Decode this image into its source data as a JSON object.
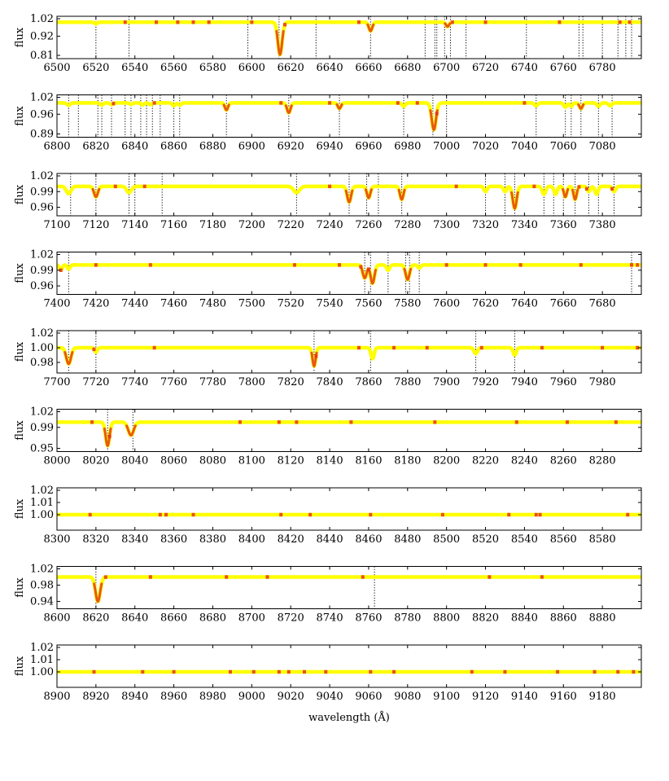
{
  "figure": {
    "xlabel": "wavelength (Å)",
    "ylabel": "flux",
    "colors": {
      "continuum": "#ffff00",
      "line_core": "#e85a10",
      "hot_spot": "#e8301a",
      "marker": "#000000"
    }
  },
  "chart_data": [
    {
      "type": "line",
      "xlim": [
        6500,
        6800
      ],
      "xticks": [
        "6500",
        "6520",
        "6540",
        "6560",
        "6580",
        "6600",
        "6620",
        "6640",
        "6660",
        "6680",
        "6700",
        "6720",
        "6740",
        "6760",
        "6780"
      ],
      "ylim": [
        0.81,
        1.02
      ],
      "yticks": [
        "1.02",
        "0.92",
        "0.81"
      ],
      "continuum": 1.0,
      "lines": [
        {
          "x": 6614.5,
          "depth": 0.185,
          "width": 1.1
        },
        {
          "x": 6661,
          "depth": 0.05,
          "width": 0.9
        },
        {
          "x": 6700.5,
          "depth": 0.025,
          "width": 0.8
        },
        {
          "x": 6520,
          "depth": 0.01,
          "width": 0.6
        }
      ],
      "markers": [
        6520,
        6537,
        6598,
        6614,
        6633,
        6661,
        6689,
        6694,
        6695,
        6699,
        6702,
        6710,
        6741,
        6768,
        6770,
        6780,
        6788,
        6792,
        6795
      ],
      "hot_spots": [
        6535,
        6551,
        6562,
        6570,
        6578,
        6600,
        6617,
        6655,
        6703,
        6720,
        6758,
        6789,
        6794
      ]
    },
    {
      "type": "line",
      "xlim": [
        6800,
        7100
      ],
      "xticks": [
        "6800",
        "6820",
        "6840",
        "6860",
        "6880",
        "6900",
        "6920",
        "6940",
        "6960",
        "6980",
        "7000",
        "7020",
        "7040",
        "7060",
        "7080"
      ],
      "ylim": [
        0.89,
        1.02
      ],
      "yticks": [
        "1.02",
        "0.96",
        "0.89"
      ],
      "continuum": 1.0,
      "lines": [
        {
          "x": 6993.5,
          "depth": 0.095,
          "width": 1.1
        },
        {
          "x": 6919,
          "depth": 0.035,
          "width": 0.9
        },
        {
          "x": 6887,
          "depth": 0.025,
          "width": 0.8
        },
        {
          "x": 6945,
          "depth": 0.02,
          "width": 0.8
        },
        {
          "x": 6978,
          "depth": 0.012,
          "width": 0.8
        },
        {
          "x": 6806,
          "depth": 0.008,
          "width": 0.8
        },
        {
          "x": 6823,
          "depth": 0.008,
          "width": 0.7
        },
        {
          "x": 6828,
          "depth": 0.006,
          "width": 0.7
        },
        {
          "x": 6838,
          "depth": 0.005,
          "width": 0.7
        },
        {
          "x": 6844,
          "depth": 0.007,
          "width": 0.7
        },
        {
          "x": 6848,
          "depth": 0.006,
          "width": 0.7
        },
        {
          "x": 6860,
          "depth": 0.01,
          "width": 0.7
        },
        {
          "x": 6863,
          "depth": 0.008,
          "width": 0.7
        },
        {
          "x": 7046,
          "depth": 0.01,
          "width": 0.8
        },
        {
          "x": 7061,
          "depth": 0.015,
          "width": 0.8
        },
        {
          "x": 7064,
          "depth": 0.012,
          "width": 0.7
        },
        {
          "x": 7069,
          "depth": 0.02,
          "width": 0.8
        },
        {
          "x": 7078,
          "depth": 0.012,
          "width": 0.8
        },
        {
          "x": 7084,
          "depth": 0.01,
          "width": 0.8
        }
      ],
      "markers": [
        6806,
        6811,
        6821,
        6823,
        6828,
        6835,
        6838,
        6843,
        6846,
        6849,
        6853,
        6860,
        6863,
        6887,
        6919,
        6945,
        6978,
        6993,
        7000,
        7046,
        7061,
        7064,
        7069,
        7078,
        7085
      ],
      "hot_spots": [
        6829,
        6850,
        6915,
        6940,
        6975,
        6985,
        6995,
        7040
      ]
    },
    {
      "type": "line",
      "xlim": [
        7100,
        7400
      ],
      "xticks": [
        "7100",
        "7120",
        "7140",
        "7160",
        "7180",
        "7200",
        "7220",
        "7240",
        "7260",
        "7280",
        "7300",
        "7320",
        "7340",
        "7360",
        "7380"
      ],
      "ylim": [
        0.95,
        1.02
      ],
      "yticks": [
        "1.02",
        "0.99",
        "0.96"
      ],
      "continuum": 1.0,
      "lines": [
        {
          "x": 7335,
          "depth": 0.042,
          "width": 1.0
        },
        {
          "x": 7250,
          "depth": 0.03,
          "width": 1.0
        },
        {
          "x": 7277,
          "depth": 0.025,
          "width": 0.9
        },
        {
          "x": 7260,
          "depth": 0.022,
          "width": 0.9
        },
        {
          "x": 7106,
          "depth": 0.014,
          "width": 1.2
        },
        {
          "x": 7120,
          "depth": 0.02,
          "width": 1.0
        },
        {
          "x": 7137,
          "depth": 0.012,
          "width": 1.2
        },
        {
          "x": 7223,
          "depth": 0.012,
          "width": 1.5
        },
        {
          "x": 7320,
          "depth": 0.01,
          "width": 0.8
        },
        {
          "x": 7330,
          "depth": 0.01,
          "width": 0.8
        },
        {
          "x": 7350,
          "depth": 0.015,
          "width": 0.9
        },
        {
          "x": 7356,
          "depth": 0.015,
          "width": 0.8
        },
        {
          "x": 7361,
          "depth": 0.02,
          "width": 0.8
        },
        {
          "x": 7366,
          "depth": 0.025,
          "width": 0.8
        },
        {
          "x": 7373,
          "depth": 0.01,
          "width": 0.8
        },
        {
          "x": 7377,
          "depth": 0.015,
          "width": 0.8
        },
        {
          "x": 7386,
          "depth": 0.01,
          "width": 0.8
        }
      ],
      "markers": [
        7107,
        7120,
        7137,
        7140,
        7154,
        7223,
        7250,
        7259,
        7265,
        7277,
        7320,
        7330,
        7335,
        7350,
        7355,
        7360,
        7366,
        7373,
        7378,
        7386
      ],
      "hot_spots": [
        7130,
        7145,
        7240,
        7305,
        7345,
        7368,
        7372,
        7385
      ]
    },
    {
      "type": "line",
      "xlim": [
        7400,
        7700
      ],
      "xticks": [
        "7400",
        "7420",
        "7440",
        "7460",
        "7480",
        "7500",
        "7520",
        "7540",
        "7560",
        "7580",
        "7600",
        "7620",
        "7640",
        "7660",
        "7680"
      ],
      "ylim": [
        0.95,
        1.02
      ],
      "yticks": [
        "1.02",
        "0.99",
        "0.96"
      ],
      "continuum": 1.0,
      "lines": [
        {
          "x": 7558,
          "depth": 0.025,
          "width": 1.0
        },
        {
          "x": 7562,
          "depth": 0.035,
          "width": 1.0
        },
        {
          "x": 7580,
          "depth": 0.028,
          "width": 1.0
        },
        {
          "x": 7570,
          "depth": 0.01,
          "width": 0.8
        },
        {
          "x": 7586,
          "depth": 0.006,
          "width": 0.7
        },
        {
          "x": 7402,
          "depth": 0.01,
          "width": 0.7
        },
        {
          "x": 7406,
          "depth": 0.008,
          "width": 0.7
        }
      ],
      "markers": [
        7406,
        7558,
        7561,
        7570,
        7579,
        7581,
        7586,
        7695
      ],
      "hot_spots": [
        7402,
        7420,
        7448,
        7522,
        7545,
        7556,
        7560,
        7600,
        7620,
        7638,
        7669,
        7695,
        7698
      ]
    },
    {
      "type": "line",
      "xlim": [
        7700,
        8000
      ],
      "xticks": [
        "7700",
        "7720",
        "7740",
        "7760",
        "7780",
        "7800",
        "7820",
        "7840",
        "7860",
        "7880",
        "7900",
        "7920",
        "7940",
        "7960",
        "7980"
      ],
      "ylim": [
        0.97,
        1.02
      ],
      "yticks": [
        "1.02",
        "1.00",
        "0.98"
      ],
      "continuum": 1.0,
      "lines": [
        {
          "x": 7706,
          "depth": 0.022,
          "width": 1.2
        },
        {
          "x": 7720,
          "depth": 0.006,
          "width": 0.7
        },
        {
          "x": 7832,
          "depth": 0.025,
          "width": 0.8
        },
        {
          "x": 7862,
          "depth": 0.015,
          "width": 0.8
        },
        {
          "x": 7915,
          "depth": 0.008,
          "width": 0.9
        },
        {
          "x": 7935,
          "depth": 0.01,
          "width": 0.8
        }
      ],
      "markers": [
        7706,
        7720,
        7832,
        7861,
        7915,
        7935
      ],
      "hot_spots": [
        7719,
        7750,
        7833,
        7855,
        7873,
        7890,
        7918,
        7949,
        7980,
        7998
      ]
    },
    {
      "type": "line",
      "xlim": [
        8000,
        8300
      ],
      "xticks": [
        "8000",
        "8020",
        "8040",
        "8060",
        "8080",
        "8100",
        "8120",
        "8140",
        "8160",
        "8180",
        "8200",
        "8220",
        "8240",
        "8260",
        "8280"
      ],
      "ylim": [
        0.95,
        1.02
      ],
      "yticks": [
        "1.02",
        "0.99",
        "0.95"
      ],
      "continuum": 1.0,
      "lines": [
        {
          "x": 8026,
          "depth": 0.045,
          "width": 1.0
        },
        {
          "x": 8038,
          "depth": 0.025,
          "width": 1.4
        }
      ],
      "markers": [
        8026,
        8039
      ],
      "hot_spots": [
        8018,
        8027,
        8094,
        8114,
        8123,
        8151,
        8194,
        8236,
        8262,
        8287
      ]
    },
    {
      "type": "line",
      "xlim": [
        8300,
        8600
      ],
      "xticks": [
        "8300",
        "8320",
        "8340",
        "8360",
        "8380",
        "8400",
        "8420",
        "8440",
        "8460",
        "8480",
        "8500",
        "8520",
        "8540",
        "8560",
        "8580"
      ],
      "ylim": [
        0.99,
        1.02
      ],
      "yticks": [
        "1.02",
        "1.01",
        "1.00"
      ],
      "continuum": 1.0,
      "lines": [],
      "markers": [],
      "hot_spots": [
        8317,
        8353,
        8356,
        8370,
        8415,
        8430,
        8461,
        8498,
        8532,
        8546,
        8548,
        8593
      ]
    },
    {
      "type": "line",
      "xlim": [
        8600,
        8900
      ],
      "xticks": [
        "8600",
        "8620",
        "8640",
        "8660",
        "8680",
        "8700",
        "8720",
        "8740",
        "8760",
        "8780",
        "8800",
        "8820",
        "8840",
        "8860",
        "8880"
      ],
      "ylim": [
        0.93,
        1.02
      ],
      "yticks": [
        "1.02",
        "0.98",
        "0.94"
      ],
      "continuum": 1.0,
      "lines": [
        {
          "x": 8621,
          "depth": 0.06,
          "width": 1.2
        }
      ],
      "markers": [
        8620,
        8763
      ],
      "hot_spots": [
        8625,
        8648,
        8687,
        8708,
        8757,
        8822,
        8849
      ]
    },
    {
      "type": "line",
      "xlim": [
        8900,
        9200
      ],
      "xticks": [
        "8900",
        "8920",
        "8940",
        "8960",
        "8980",
        "9000",
        "9020",
        "9040",
        "9060",
        "9080",
        "9100",
        "9120",
        "9140",
        "9160",
        "9180"
      ],
      "ylim": [
        0.99,
        1.02
      ],
      "yticks": [
        "1.02",
        "1.01",
        "1.00"
      ],
      "continuum": 1.0,
      "lines": [],
      "markers": [],
      "hot_spots": [
        8919,
        8944,
        8960,
        8989,
        9001,
        9014,
        9019,
        9027,
        9038,
        9061,
        9073,
        9113,
        9130,
        9157,
        9176,
        9188,
        9196
      ]
    }
  ]
}
